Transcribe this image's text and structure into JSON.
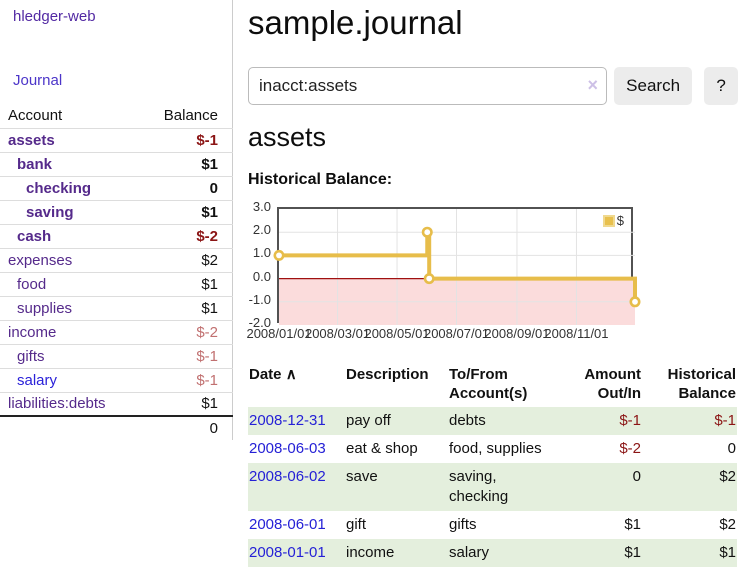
{
  "app": {
    "brand": "hledger-web",
    "nav": {
      "journal": "Journal"
    }
  },
  "sidebar": {
    "header": {
      "account": "Account",
      "balance": "Balance"
    },
    "accounts": [
      {
        "name": "assets",
        "balance": "$-1",
        "depth": 1,
        "matched": true,
        "neg": "strong",
        "link": "purple"
      },
      {
        "name": "bank",
        "balance": "$1",
        "depth": 2,
        "matched": true,
        "neg": "none",
        "link": "purple"
      },
      {
        "name": "checking",
        "balance": "0",
        "depth": 3,
        "matched": true,
        "neg": "none",
        "link": "purple"
      },
      {
        "name": "saving",
        "balance": "$1",
        "depth": 3,
        "matched": true,
        "neg": "none",
        "link": "purple"
      },
      {
        "name": "cash",
        "balance": "$-2",
        "depth": 2,
        "matched": true,
        "neg": "strong",
        "link": "purple"
      },
      {
        "name": "expenses",
        "balance": "$2",
        "depth": 1,
        "matched": false,
        "neg": "none",
        "link": "purple"
      },
      {
        "name": "food",
        "balance": "$1",
        "depth": 2,
        "matched": false,
        "neg": "none",
        "link": "purple"
      },
      {
        "name": "supplies",
        "balance": "$1",
        "depth": 2,
        "matched": false,
        "neg": "none",
        "link": "purple"
      },
      {
        "name": "income",
        "balance": "$-2",
        "depth": 1,
        "matched": false,
        "neg": "light",
        "link": "purple"
      },
      {
        "name": "gifts",
        "balance": "$-1",
        "depth": 2,
        "matched": false,
        "neg": "light",
        "link": "purple"
      },
      {
        "name": "salary",
        "balance": "$-1",
        "depth": 2,
        "matched": false,
        "neg": "light",
        "link": "blue"
      },
      {
        "name": "liabilities:debts",
        "balance": "$1",
        "depth": 1,
        "matched": false,
        "neg": "none",
        "link": "purple"
      }
    ],
    "total": "0"
  },
  "main": {
    "title": "sample.journal",
    "search": {
      "value": "inacct:assets",
      "clear_icon": "×",
      "button": "Search",
      "help": "?"
    },
    "section_heading": "assets",
    "chart_heading": "Historical Balance:"
  },
  "chart_data": {
    "type": "line",
    "style": "step",
    "legend": "$",
    "line_color": "#e7bd4a",
    "marker_fill": "#ffffff",
    "negative_region_color": "#fbdcdc",
    "zero_line_color": "#a01010",
    "grid_color": "#e3e3e3",
    "ylim": [
      -2,
      3
    ],
    "x_range": [
      "2008-01-01",
      "2008-12-31"
    ],
    "points": [
      {
        "date": "2008-01-01",
        "value": 1
      },
      {
        "date": "2008-06-01",
        "value": 2
      },
      {
        "date": "2008-06-03",
        "value": 0
      },
      {
        "date": "2008-12-31",
        "value": -1
      }
    ],
    "y_ticks": [
      {
        "label": "3.0",
        "value": 3
      },
      {
        "label": "2.0",
        "value": 2
      },
      {
        "label": "1.0",
        "value": 1
      },
      {
        "label": "0.0",
        "value": 0
      },
      {
        "label": "-1.0",
        "value": -1
      },
      {
        "label": "-2.0",
        "value": -2
      }
    ],
    "x_ticks": [
      {
        "label": "2008/01/01",
        "date": "2008-01-01"
      },
      {
        "label": "2008/03/01",
        "date": "2008-03-01"
      },
      {
        "label": "2008/05/01",
        "date": "2008-05-01"
      },
      {
        "label": "2008/07/01",
        "date": "2008-07-01"
      },
      {
        "label": "2008/09/01",
        "date": "2008-09-01"
      },
      {
        "label": "2008/11/01",
        "date": "2008-11-01"
      }
    ]
  },
  "table": {
    "sort_icon": "∧",
    "headers": {
      "date": "Date",
      "description": "Description",
      "accounts": "To/From Account(s)",
      "amount": "Amount Out/In",
      "balance": "Historical Balance"
    },
    "rows": [
      {
        "date": "2008-12-31",
        "description": "pay off",
        "accounts": "debts",
        "amount": "$-1",
        "balance": "$-1",
        "amount_neg": true,
        "balance_neg": true,
        "shaded": true
      },
      {
        "date": "2008-06-03",
        "description": "eat & shop",
        "accounts": "food, supplies",
        "amount": "$-2",
        "balance": "0",
        "amount_neg": true,
        "balance_neg": false,
        "shaded": false
      },
      {
        "date": "2008-06-02",
        "description": "save",
        "accounts": "saving, checking",
        "amount": "0",
        "balance": "$2",
        "amount_neg": false,
        "balance_neg": false,
        "shaded": true
      },
      {
        "date": "2008-06-01",
        "description": "gift",
        "accounts": "gifts",
        "amount": "$1",
        "balance": "$2",
        "amount_neg": false,
        "balance_neg": false,
        "shaded": false
      },
      {
        "date": "2008-01-01",
        "description": "income",
        "accounts": "salary",
        "amount": "$1",
        "balance": "$1",
        "amount_neg": false,
        "balance_neg": false,
        "shaded": true
      }
    ]
  }
}
